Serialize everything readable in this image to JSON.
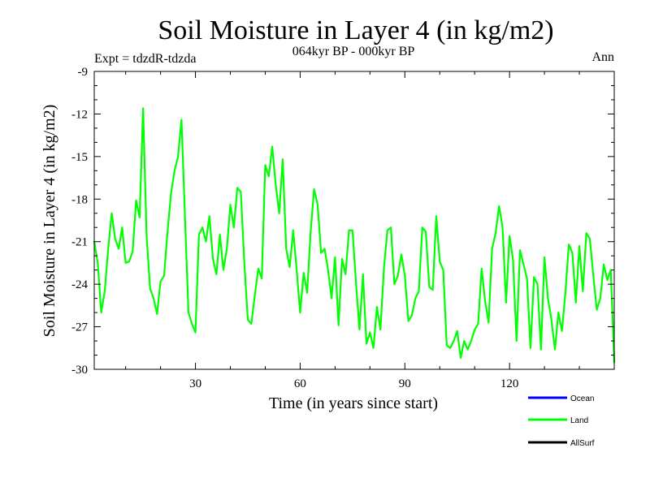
{
  "chart_data": {
    "type": "line",
    "title": "Soil Moisture in Layer 4 (in kg/m2)",
    "subtitle": "064kyr BP - 000kyr BP",
    "left_label": "Expt = tdzdR-tdzda",
    "right_label": "Ann",
    "xlabel": "Time (in years since start)",
    "ylabel": "Soil Moisture in Layer 4 (in kg/m2)",
    "xlim": [
      1,
      150
    ],
    "ylim": [
      -30,
      -9
    ],
    "x_ticks": [
      30,
      60,
      90,
      120
    ],
    "y_ticks": [
      -30,
      -27,
      -24,
      -21,
      -18,
      -15,
      -12,
      -9
    ],
    "x_tick_labels": [
      "30",
      "60",
      "90",
      "120"
    ],
    "y_tick_labels": [
      "-30",
      "-27",
      "-24",
      "-21",
      "-18",
      "-15",
      "-12",
      "-9"
    ],
    "legend": [
      {
        "name": "Ocean",
        "color": "#0000ff"
      },
      {
        "name": "Land",
        "color": "#00ff00"
      },
      {
        "name": "AllSurf",
        "color": "#000000"
      }
    ],
    "series": [
      {
        "name": "Land",
        "color": "#00ff00",
        "x": [
          1,
          2,
          3,
          4,
          5,
          6,
          7,
          8,
          9,
          10,
          11,
          12,
          13,
          14,
          15,
          16,
          17,
          18,
          19,
          20,
          21,
          22,
          23,
          24,
          25,
          26,
          27,
          28,
          29,
          30,
          31,
          32,
          33,
          34,
          35,
          36,
          37,
          38,
          39,
          40,
          41,
          42,
          43,
          44,
          45,
          46,
          47,
          48,
          49,
          50,
          51,
          52,
          53,
          54,
          55,
          56,
          57,
          58,
          59,
          60,
          61,
          62,
          63,
          64,
          65,
          66,
          67,
          68,
          69,
          70,
          71,
          72,
          73,
          74,
          75,
          76,
          77,
          78,
          79,
          80,
          81,
          82,
          83,
          84,
          85,
          86,
          87,
          88,
          89,
          90,
          91,
          92,
          93,
          94,
          95,
          96,
          97,
          98,
          99,
          100,
          101,
          102,
          103,
          104,
          105,
          106,
          107,
          108,
          109,
          110,
          111,
          112,
          113,
          114,
          115,
          116,
          117,
          118,
          119,
          120,
          121,
          122,
          123,
          124,
          125,
          126,
          127,
          128,
          129,
          130,
          131,
          132,
          133,
          134,
          135,
          136,
          137,
          138,
          139,
          140,
          141,
          142,
          143,
          144,
          145,
          146,
          147,
          148,
          149,
          150
        ],
        "values": [
          -21.0,
          -22.5,
          -26.0,
          -24.5,
          -21.5,
          -19.0,
          -20.8,
          -21.5,
          -20.0,
          -22.5,
          -22.4,
          -21.7,
          -18.1,
          -19.3,
          -11.6,
          -20.6,
          -24.3,
          -25.0,
          -26.1,
          -23.8,
          -23.4,
          -20.3,
          -17.6,
          -16.0,
          -15.0,
          -12.4,
          -19.3,
          -26.0,
          -26.8,
          -27.4,
          -20.5,
          -20.0,
          -21.0,
          -19.2,
          -22.2,
          -23.3,
          -20.5,
          -23.0,
          -21.5,
          -18.4,
          -20.0,
          -17.2,
          -17.5,
          -22.5,
          -26.5,
          -26.8,
          -24.8,
          -22.9,
          -23.6,
          -15.6,
          -16.4,
          -14.3,
          -17.0,
          -19.0,
          -15.2,
          -21.5,
          -22.8,
          -20.2,
          -23.0,
          -26.0,
          -23.2,
          -24.6,
          -20.3,
          -17.3,
          -18.4,
          -21.8,
          -21.5,
          -23.0,
          -25.0,
          -22.1,
          -26.9,
          -22.2,
          -23.3,
          -20.2,
          -20.2,
          -23.9,
          -27.2,
          -23.3,
          -28.2,
          -27.4,
          -28.5,
          -25.6,
          -27.2,
          -22.9,
          -20.2,
          -20.0,
          -24.0,
          -23.4,
          -21.9,
          -23.4,
          -26.6,
          -26.2,
          -25.0,
          -24.5,
          -20.0,
          -20.3,
          -24.2,
          -24.4,
          -19.2,
          -22.4,
          -23.0,
          -28.3,
          -28.5,
          -28.0,
          -27.3,
          -29.2,
          -28.0,
          -28.6,
          -28.0,
          -27.2,
          -26.8,
          -22.9,
          -25.2,
          -26.7,
          -21.5,
          -20.4,
          -18.5,
          -20.0,
          -25.3,
          -20.6,
          -22.3,
          -28.0,
          -21.6,
          -22.6,
          -23.6,
          -28.5,
          -23.5,
          -24.0,
          -28.6,
          -22.1,
          -25.0,
          -26.5,
          -28.6,
          -26.0,
          -27.3,
          -24.6,
          -21.2,
          -21.8,
          -25.3,
          -21.3,
          -24.5,
          -20.4,
          -20.8,
          -23.4,
          -25.8,
          -25.0,
          -22.6,
          -23.7,
          -23.0,
          -29.5
        ]
      }
    ]
  }
}
